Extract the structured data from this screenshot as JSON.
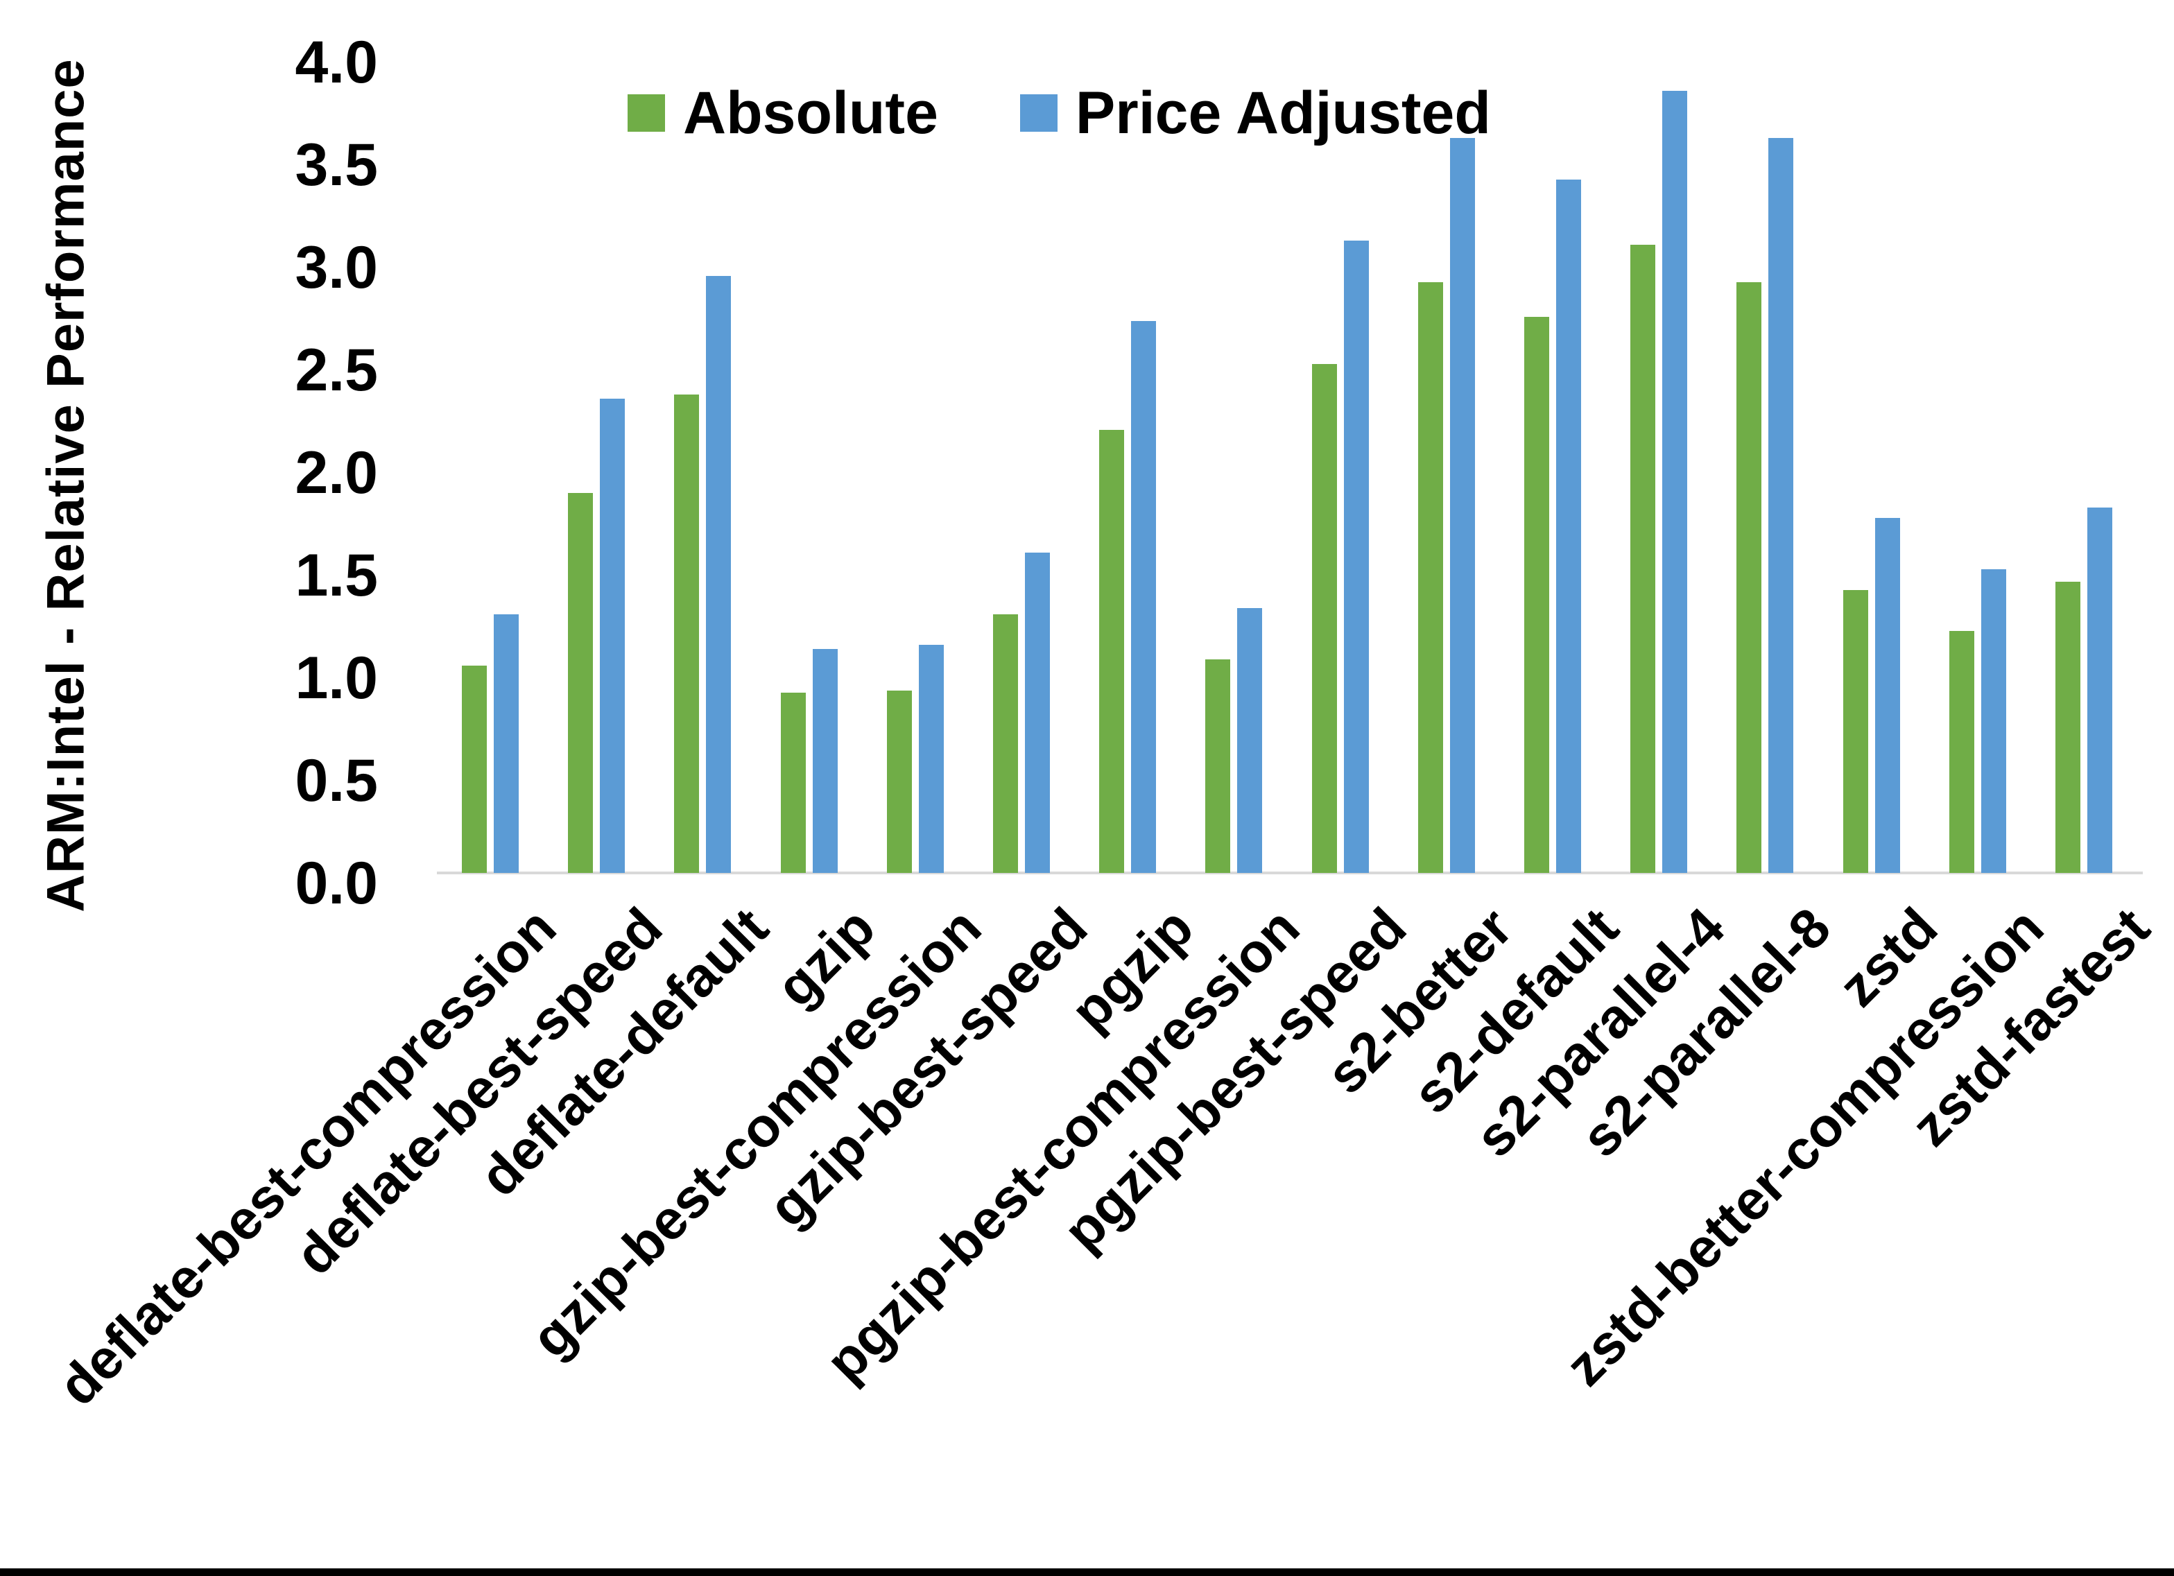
{
  "chart_data": {
    "type": "bar",
    "title": "",
    "xlabel": "",
    "ylabel": "ARM:Intel - Relative Performance",
    "ylim": [
      0.0,
      4.0
    ],
    "ytick_step": 0.5,
    "grid": false,
    "legend_position": "top-center",
    "categories": [
      "deflate-best-compression",
      "deflate-best-speed",
      "deflate-default",
      "gzip",
      "gzip-best-compression",
      "gzip-best-speed",
      "pgzip",
      "pgzip-best-compression",
      "pgzip-best-speed",
      "s2-better",
      "s2-default",
      "s2-parallel-4",
      "s2-parallel-8",
      "zstd",
      "zstd-better-compression",
      "zstd-fastest"
    ],
    "series": [
      {
        "name": "Absolute",
        "color": "#70AD47",
        "values": [
          1.01,
          1.85,
          2.33,
          0.88,
          0.89,
          1.26,
          2.16,
          1.04,
          2.48,
          2.88,
          2.71,
          3.06,
          2.88,
          1.38,
          1.18,
          1.42
        ]
      },
      {
        "name": "Price Adjusted",
        "color": "#5B9BD5",
        "values": [
          1.26,
          2.31,
          2.91,
          1.09,
          1.11,
          1.56,
          2.69,
          1.29,
          3.08,
          3.58,
          3.38,
          3.81,
          3.58,
          1.73,
          1.48,
          1.78
        ]
      }
    ]
  },
  "colors": {
    "background": "#FFFFFF",
    "axis_line": "#D9D9D9",
    "text": "#000000",
    "bottom_border": "#000000"
  }
}
